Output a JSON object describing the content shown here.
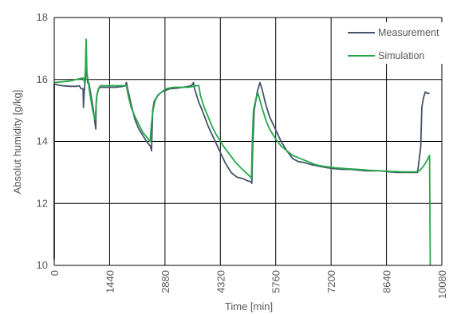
{
  "chart_data": {
    "type": "line",
    "xlabel": "Time [min]",
    "ylabel": "Absolut humidity [g/kg]",
    "xlim": [
      0,
      10080
    ],
    "ylim": [
      10,
      18
    ],
    "x_ticks": [
      "0",
      "1440",
      "2880",
      "4320",
      "5760",
      "7200",
      "8640",
      "10080"
    ],
    "y_ticks": [
      "10",
      "12",
      "14",
      "16",
      "18"
    ],
    "grid": true,
    "legend_position": "top-right",
    "series": [
      {
        "name": "Measurement",
        "color": "#44546a",
        "points": [
          [
            0,
            10.2
          ],
          [
            0,
            15.85
          ],
          [
            200,
            15.8
          ],
          [
            400,
            15.78
          ],
          [
            600,
            15.78
          ],
          [
            650,
            15.8
          ],
          [
            700,
            15.7
          ],
          [
            750,
            15.7
          ],
          [
            760,
            15.1
          ],
          [
            780,
            15.6
          ],
          [
            800,
            15.9
          ],
          [
            840,
            16.4
          ],
          [
            870,
            15.9
          ],
          [
            900,
            15.9
          ],
          [
            940,
            15.6
          ],
          [
            980,
            15.3
          ],
          [
            1020,
            15.0
          ],
          [
            1050,
            14.7
          ],
          [
            1070,
            14.5
          ],
          [
            1080,
            14.4
          ],
          [
            1090,
            15.2
          ],
          [
            1110,
            15.5
          ],
          [
            1150,
            15.7
          ],
          [
            1200,
            15.75
          ],
          [
            1400,
            15.75
          ],
          [
            1600,
            15.75
          ],
          [
            1800,
            15.78
          ],
          [
            1850,
            15.8
          ],
          [
            1880,
            15.9
          ],
          [
            1900,
            15.75
          ],
          [
            2000,
            15.2
          ],
          [
            2100,
            14.7
          ],
          [
            2200,
            14.4
          ],
          [
            2300,
            14.2
          ],
          [
            2400,
            14.0
          ],
          [
            2500,
            13.85
          ],
          [
            2530,
            13.7
          ],
          [
            2560,
            15.0
          ],
          [
            2600,
            15.3
          ],
          [
            2700,
            15.5
          ],
          [
            2800,
            15.6
          ],
          [
            2900,
            15.65
          ],
          [
            3000,
            15.7
          ],
          [
            3200,
            15.72
          ],
          [
            3350,
            15.75
          ],
          [
            3500,
            15.78
          ],
          [
            3570,
            15.8
          ],
          [
            3620,
            15.9
          ],
          [
            3650,
            15.7
          ],
          [
            3750,
            15.3
          ],
          [
            3850,
            15.0
          ],
          [
            4000,
            14.5
          ],
          [
            4150,
            14.1
          ],
          [
            4300,
            13.7
          ],
          [
            4450,
            13.3
          ],
          [
            4600,
            13.0
          ],
          [
            4750,
            12.85
          ],
          [
            4900,
            12.8
          ],
          [
            5050,
            12.72
          ],
          [
            5120,
            12.7
          ],
          [
            5140,
            12.65
          ],
          [
            5160,
            13.8
          ],
          [
            5200,
            15.0
          ],
          [
            5280,
            15.6
          ],
          [
            5350,
            15.9
          ],
          [
            5400,
            15.7
          ],
          [
            5500,
            15.2
          ],
          [
            5600,
            14.8
          ],
          [
            5750,
            14.4
          ],
          [
            5900,
            14.0
          ],
          [
            6050,
            13.7
          ],
          [
            6200,
            13.45
          ],
          [
            6350,
            13.35
          ],
          [
            6500,
            13.32
          ],
          [
            6700,
            13.25
          ],
          [
            6900,
            13.2
          ],
          [
            7100,
            13.15
          ],
          [
            7300,
            13.12
          ],
          [
            7500,
            13.1
          ],
          [
            7700,
            13.1
          ],
          [
            7900,
            13.08
          ],
          [
            8100,
            13.05
          ],
          [
            8300,
            13.05
          ],
          [
            8500,
            13.05
          ],
          [
            8700,
            13.02
          ],
          [
            8900,
            13.0
          ],
          [
            9100,
            13.0
          ],
          [
            9300,
            13.0
          ],
          [
            9450,
            13.0
          ],
          [
            9500,
            13.5
          ],
          [
            9530,
            13.8
          ],
          [
            9560,
            15.1
          ],
          [
            9600,
            15.4
          ],
          [
            9650,
            15.6
          ],
          [
            9700,
            15.55
          ],
          [
            9760,
            15.55
          ]
        ]
      },
      {
        "name": "Simulation",
        "color": "#24a84a",
        "points": [
          [
            0,
            15.9
          ],
          [
            400,
            15.95
          ],
          [
            750,
            16.05
          ],
          [
            790,
            15.9
          ],
          [
            810,
            16.3
          ],
          [
            830,
            17.3
          ],
          [
            850,
            16.2
          ],
          [
            880,
            16.0
          ],
          [
            920,
            15.6
          ],
          [
            960,
            15.3
          ],
          [
            1000,
            15.0
          ],
          [
            1040,
            14.8
          ],
          [
            1070,
            14.7
          ],
          [
            1080,
            15.0
          ],
          [
            1100,
            15.4
          ],
          [
            1150,
            15.7
          ],
          [
            1200,
            15.8
          ],
          [
            1400,
            15.8
          ],
          [
            1600,
            15.8
          ],
          [
            1800,
            15.8
          ],
          [
            1880,
            15.8
          ],
          [
            1920,
            15.5
          ],
          [
            2000,
            15.1
          ],
          [
            2100,
            14.8
          ],
          [
            2200,
            14.55
          ],
          [
            2300,
            14.3
          ],
          [
            2400,
            14.15
          ],
          [
            2490,
            14.0
          ],
          [
            2500,
            14.1
          ],
          [
            2530,
            14.6
          ],
          [
            2570,
            15.0
          ],
          [
            2620,
            15.3
          ],
          [
            2700,
            15.5
          ],
          [
            2800,
            15.6
          ],
          [
            2900,
            15.7
          ],
          [
            3100,
            15.75
          ],
          [
            3300,
            15.75
          ],
          [
            3500,
            15.75
          ],
          [
            3700,
            15.8
          ],
          [
            3760,
            15.8
          ],
          [
            3800,
            15.5
          ],
          [
            3900,
            15.1
          ],
          [
            4000,
            14.8
          ],
          [
            4100,
            14.5
          ],
          [
            4200,
            14.25
          ],
          [
            4300,
            14.05
          ],
          [
            4400,
            13.85
          ],
          [
            4550,
            13.6
          ],
          [
            4700,
            13.35
          ],
          [
            4850,
            13.15
          ],
          [
            5000,
            12.98
          ],
          [
            5100,
            12.86
          ],
          [
            5130,
            12.8
          ],
          [
            5150,
            14.0
          ],
          [
            5180,
            15.0
          ],
          [
            5250,
            15.4
          ],
          [
            5300,
            15.55
          ],
          [
            5400,
            15.1
          ],
          [
            5500,
            14.7
          ],
          [
            5600,
            14.4
          ],
          [
            5750,
            14.1
          ],
          [
            5900,
            13.85
          ],
          [
            6050,
            13.7
          ],
          [
            6200,
            13.55
          ],
          [
            6400,
            13.45
          ],
          [
            6600,
            13.35
          ],
          [
            6800,
            13.25
          ],
          [
            7000,
            13.2
          ],
          [
            7300,
            13.15
          ],
          [
            7600,
            13.12
          ],
          [
            7900,
            13.1
          ],
          [
            8200,
            13.07
          ],
          [
            8500,
            13.05
          ],
          [
            8800,
            13.03
          ],
          [
            9100,
            13.02
          ],
          [
            9400,
            13.02
          ],
          [
            9500,
            13.05
          ],
          [
            9600,
            13.2
          ],
          [
            9700,
            13.4
          ],
          [
            9760,
            13.55
          ],
          [
            9770,
            11.5
          ],
          [
            9780,
            10.0
          ]
        ]
      }
    ]
  }
}
